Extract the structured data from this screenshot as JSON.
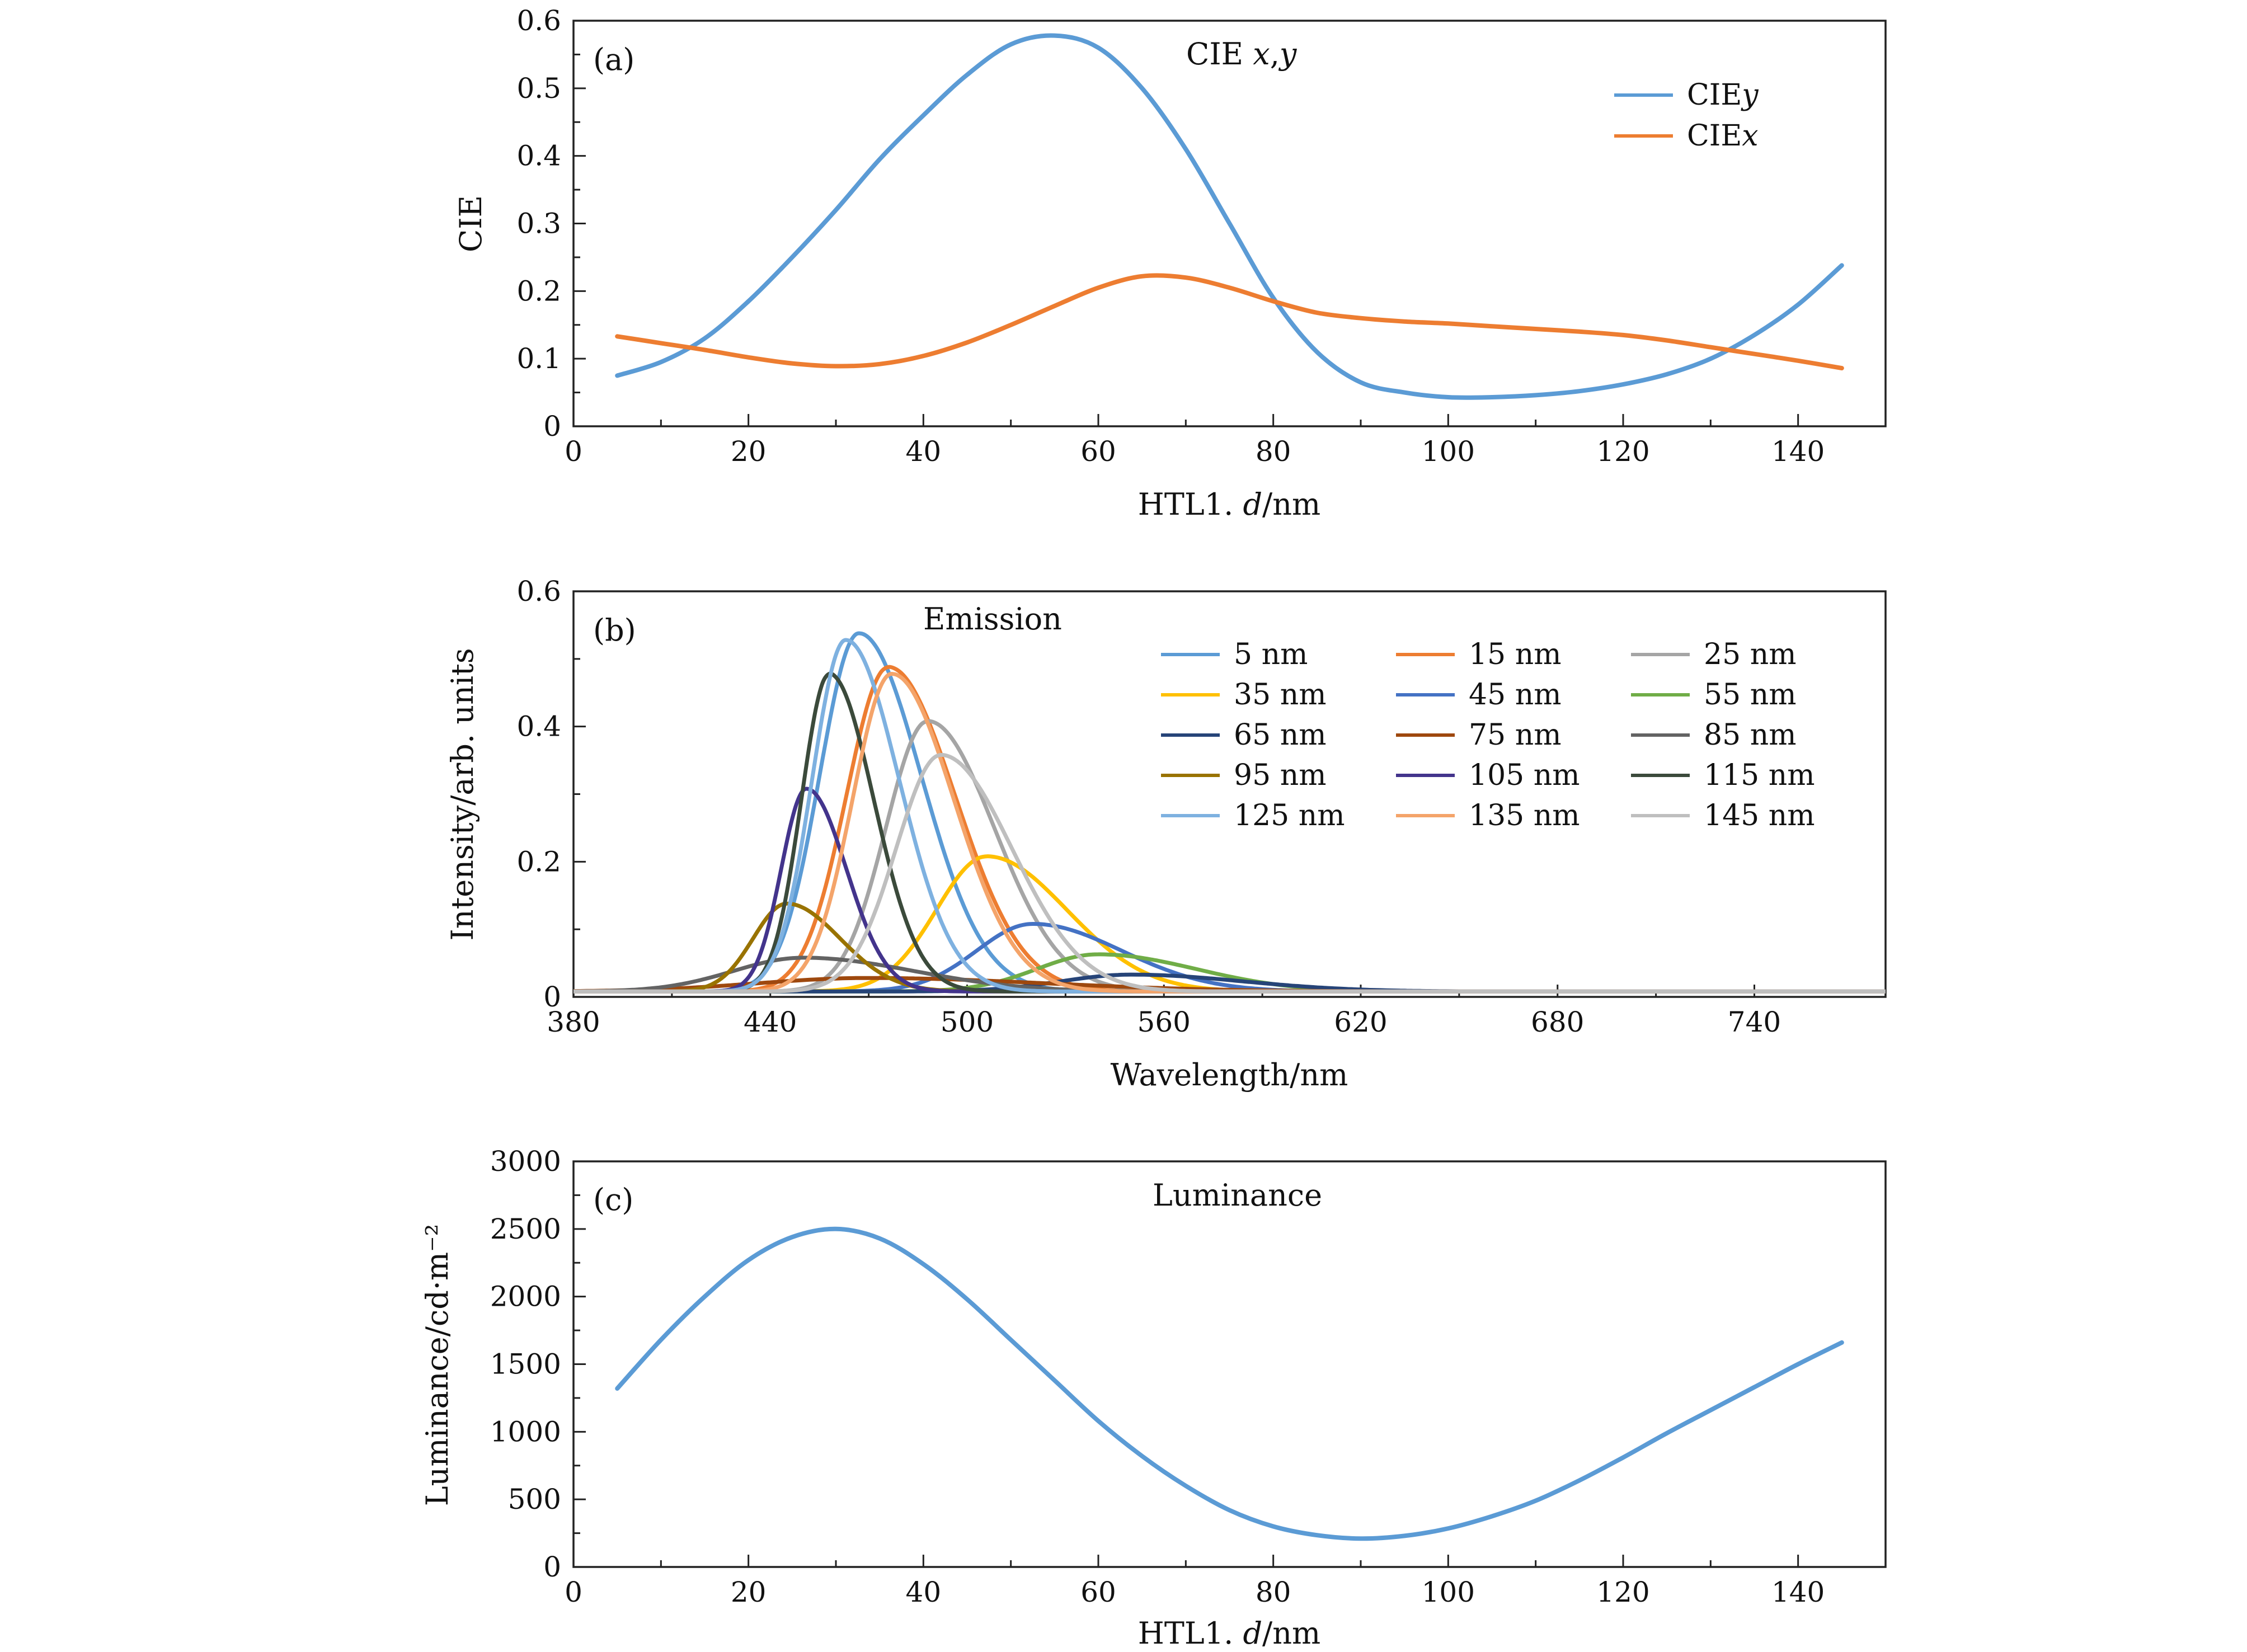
{
  "chart_data": [
    {
      "type": "line",
      "panel_label": "(a)",
      "title": "CIE x,y",
      "xlabel": "HTL1. d/nm",
      "ylabel": "CIE",
      "xlim": [
        0,
        150
      ],
      "ylim": [
        0,
        0.6
      ],
      "xticks": [
        0,
        20,
        40,
        60,
        80,
        100,
        120,
        140
      ],
      "xtick_labels": [
        "0",
        "20",
        "40",
        "60",
        "80",
        "100",
        "120",
        "140"
      ],
      "yticks": [
        0,
        0.1,
        0.2,
        0.3,
        0.4,
        0.5,
        0.6
      ],
      "ytick_labels": [
        "0",
        "0.1",
        "0.2",
        "0.3",
        "0.4",
        "0.5",
        "0.6"
      ],
      "legend_position": "top-right",
      "grid": false,
      "series": [
        {
          "name": "CIEy",
          "color": "#5b9bd5",
          "x": [
            5,
            10,
            15,
            20,
            25,
            30,
            35,
            40,
            45,
            50,
            55,
            60,
            65,
            70,
            75,
            80,
            85,
            90,
            95,
            100,
            105,
            110,
            115,
            120,
            125,
            130,
            135,
            140,
            145
          ],
          "y": [
            0.075,
            0.095,
            0.13,
            0.185,
            0.25,
            0.32,
            0.395,
            0.46,
            0.52,
            0.565,
            0.578,
            0.56,
            0.5,
            0.41,
            0.3,
            0.19,
            0.11,
            0.065,
            0.05,
            0.043,
            0.043,
            0.046,
            0.052,
            0.062,
            0.077,
            0.1,
            0.135,
            0.18,
            0.238
          ]
        },
        {
          "name": "CIEx",
          "color": "#ed7d31",
          "x": [
            5,
            10,
            15,
            20,
            25,
            30,
            35,
            40,
            45,
            50,
            55,
            60,
            65,
            70,
            75,
            80,
            85,
            90,
            95,
            100,
            105,
            110,
            115,
            120,
            125,
            130,
            135,
            140,
            145
          ],
          "y": [
            0.133,
            0.123,
            0.113,
            0.102,
            0.093,
            0.089,
            0.092,
            0.104,
            0.124,
            0.15,
            0.178,
            0.205,
            0.222,
            0.22,
            0.205,
            0.185,
            0.168,
            0.16,
            0.155,
            0.152,
            0.148,
            0.144,
            0.14,
            0.135,
            0.127,
            0.117,
            0.107,
            0.097,
            0.086
          ]
        }
      ]
    },
    {
      "type": "line",
      "panel_label": "(b)",
      "title": "Emission",
      "xlabel": "Wavelength/nm",
      "ylabel": "Intensity/arb. units",
      "xlim": [
        380,
        780
      ],
      "ylim": [
        0,
        0.6
      ],
      "xticks": [
        380,
        440,
        500,
        560,
        620,
        680,
        740
      ],
      "xtick_labels": [
        "380",
        "440",
        "500",
        "560",
        "620",
        "680",
        "740"
      ],
      "yticks": [
        0,
        0.2,
        0.4,
        0.6
      ],
      "ytick_labels": [
        "0",
        "0.2",
        "0.4",
        "0.6"
      ],
      "legend_position": "top-right",
      "grid": false,
      "series": [
        {
          "name": "5 nm",
          "color": "#5b9bd5",
          "peak_nm": 467,
          "peak": 0.53,
          "width_nm": 14
        },
        {
          "name": "15 nm",
          "color": "#ed7d31",
          "peak_nm": 476,
          "peak": 0.48,
          "width_nm": 15
        },
        {
          "name": "25 nm",
          "color": "#a5a5a5",
          "peak_nm": 488,
          "peak": 0.4,
          "width_nm": 15
        },
        {
          "name": "35 nm",
          "color": "#ffc000",
          "peak_nm": 506,
          "peak": 0.2,
          "width_nm": 18
        },
        {
          "name": "45 nm",
          "color": "#4472c4",
          "peak_nm": 520,
          "peak": 0.1,
          "width_nm": 20
        },
        {
          "name": "55 nm",
          "color": "#70ad47",
          "peak_nm": 540,
          "peak": 0.055,
          "width_nm": 22
        },
        {
          "name": "65 nm",
          "color": "#264478",
          "peak_nm": 550,
          "peak": 0.025,
          "width_nm": 25
        },
        {
          "name": "75 nm",
          "color": "#9e480e",
          "peak_nm": 470,
          "peak": 0.02,
          "width_nm": 40
        },
        {
          "name": "85 nm",
          "color": "#636363",
          "peak_nm": 450,
          "peak": 0.05,
          "width_nm": 25
        },
        {
          "name": "95 nm",
          "color": "#997300",
          "peak_nm": 445,
          "peak": 0.13,
          "width_nm": 12
        },
        {
          "name": "105 nm",
          "color": "#43348c",
          "peak_nm": 451,
          "peak": 0.3,
          "width_nm": 9
        },
        {
          "name": "115 nm",
          "color": "#3b4a3b",
          "peak_nm": 458,
          "peak": 0.47,
          "width_nm": 10
        },
        {
          "name": "125 nm",
          "color": "#7eb1e0",
          "peak_nm": 463,
          "peak": 0.52,
          "width_nm": 12
        },
        {
          "name": "135 nm",
          "color": "#f4a46a",
          "peak_nm": 477,
          "peak": 0.47,
          "width_nm": 14
        },
        {
          "name": "145 nm",
          "color": "#bfbfbf",
          "peak_nm": 492,
          "peak": 0.35,
          "width_nm": 16
        }
      ]
    },
    {
      "type": "line",
      "panel_label": "(c)",
      "title": "Luminance",
      "xlabel": "HTL1. d/nm",
      "ylabel": "Luminance/cd·m⁻²",
      "xlim": [
        0,
        150
      ],
      "ylim": [
        0,
        3000
      ],
      "xticks": [
        0,
        20,
        40,
        60,
        80,
        100,
        120,
        140
      ],
      "xtick_labels": [
        "0",
        "20",
        "40",
        "60",
        "80",
        "100",
        "120",
        "140"
      ],
      "yticks": [
        0,
        500,
        1000,
        1500,
        2000,
        2500,
        3000
      ],
      "ytick_labels": [
        "0",
        "500",
        "1000",
        "1500",
        "2000",
        "2500",
        "3000"
      ],
      "grid": false,
      "series": [
        {
          "color": "#5b9bd5",
          "x": [
            5,
            10,
            15,
            20,
            25,
            30,
            35,
            40,
            45,
            50,
            55,
            60,
            65,
            70,
            75,
            80,
            85,
            90,
            95,
            100,
            105,
            110,
            115,
            120,
            125,
            130,
            135,
            140,
            145
          ],
          "y": [
            1320,
            1680,
            2000,
            2270,
            2440,
            2500,
            2430,
            2240,
            1980,
            1680,
            1380,
            1080,
            820,
            600,
            420,
            300,
            235,
            210,
            230,
            285,
            375,
            490,
            640,
            810,
            990,
            1160,
            1330,
            1500,
            1660
          ]
        }
      ]
    }
  ]
}
